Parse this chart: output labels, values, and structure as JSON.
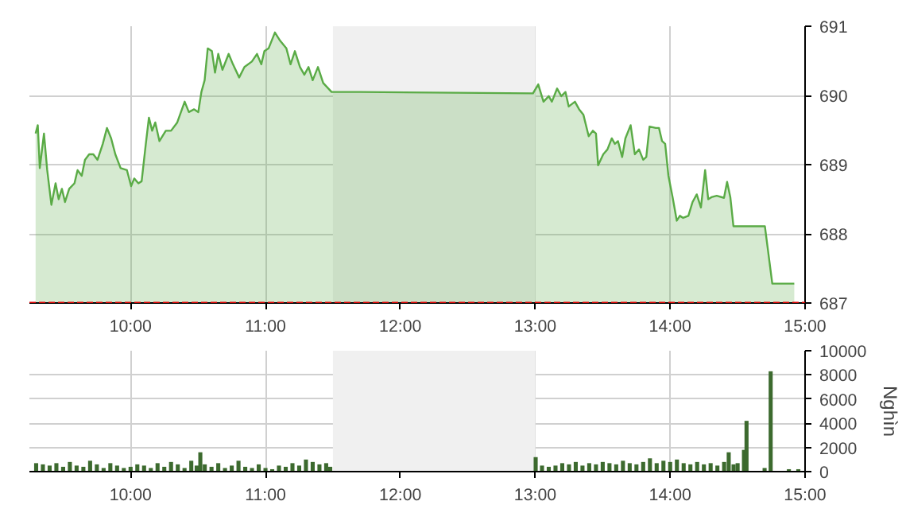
{
  "chart_data": [
    {
      "type": "area",
      "x": [
        9.296,
        9.312,
        9.327,
        9.358,
        9.382,
        9.413,
        9.444,
        9.467,
        9.491,
        9.514,
        9.545,
        9.584,
        9.607,
        9.638,
        9.662,
        9.693,
        9.724,
        9.755,
        9.794,
        9.825,
        9.856,
        9.887,
        9.926,
        9.973,
        10.004,
        10.027,
        10.058,
        10.082,
        10.113,
        10.136,
        10.16,
        10.183,
        10.214,
        10.261,
        10.3,
        10.346,
        10.401,
        10.432,
        10.471,
        10.502,
        10.525,
        10.549,
        10.572,
        10.603,
        10.626,
        10.65,
        10.681,
        10.727,
        10.759,
        10.805,
        10.844,
        10.899,
        10.937,
        10.969,
        10.992,
        11.023,
        11.07,
        11.109,
        11.155,
        11.186,
        11.218,
        11.256,
        11.288,
        11.319,
        11.35,
        11.389,
        11.428,
        11.49,
        11.7,
        12.983,
        13.022,
        13.061,
        13.1,
        13.123,
        13.162,
        13.193,
        13.224,
        13.248,
        13.294,
        13.325,
        13.357,
        13.396,
        13.427,
        13.45,
        13.466,
        13.504,
        13.535,
        13.567,
        13.59,
        13.613,
        13.644,
        13.668,
        13.707,
        13.738,
        13.769,
        13.8,
        13.823,
        13.847,
        13.893,
        13.917,
        13.94,
        13.963,
        13.987,
        14.018,
        14.049,
        14.072,
        14.096,
        14.135,
        14.166,
        14.197,
        14.228,
        14.259,
        14.282,
        14.306,
        14.345,
        14.399,
        14.422,
        14.446,
        14.469,
        14.702,
        14.757,
        14.92
      ],
      "series": [
        {
          "color": "#5aab46",
          "values": [
            689.45,
            689.57,
            688.95,
            689.45,
            688.92,
            688.42,
            688.73,
            688.5,
            688.65,
            688.46,
            688.65,
            688.73,
            688.92,
            688.84,
            689.07,
            689.15,
            689.15,
            689.07,
            689.3,
            689.53,
            689.38,
            689.15,
            688.95,
            688.92,
            688.69,
            688.8,
            688.73,
            688.76,
            689.3,
            689.68,
            689.49,
            689.61,
            689.34,
            689.49,
            689.49,
            689.61,
            689.91,
            689.76,
            689.8,
            689.76,
            690.05,
            690.22,
            690.68,
            690.64,
            690.33,
            690.6,
            690.37,
            690.6,
            690.45,
            690.26,
            690.41,
            690.49,
            690.6,
            690.45,
            690.64,
            690.68,
            690.91,
            690.79,
            690.68,
            690.45,
            690.64,
            690.41,
            690.3,
            690.41,
            690.22,
            690.41,
            690.18,
            690.05,
            690.05,
            690.03,
            690.16,
            689.91,
            689.99,
            689.91,
            690.1,
            689.99,
            690.05,
            689.84,
            689.91,
            689.8,
            689.72,
            689.41,
            689.49,
            689.45,
            688.99,
            689.15,
            689.22,
            689.38,
            689.3,
            689.34,
            689.11,
            689.38,
            689.57,
            689.15,
            689.22,
            689.07,
            689.11,
            689.55,
            689.53,
            689.53,
            689.34,
            689.3,
            688.84,
            688.53,
            688.19,
            688.26,
            688.23,
            688.26,
            688.46,
            688.57,
            688.38,
            688.92,
            688.5,
            688.53,
            688.55,
            688.52,
            688.75,
            688.53,
            688.11,
            688.11,
            687.28,
            687.28
          ]
        }
      ],
      "xlim": [
        9.25,
        15
      ],
      "ylim": [
        687,
        691
      ],
      "yticks": [
        687,
        688,
        689,
        690,
        691
      ],
      "xticks": [
        {
          "value": 10,
          "label": "10:00"
        },
        {
          "value": 11,
          "label": "11:00"
        },
        {
          "value": 12,
          "label": "12:00"
        },
        {
          "value": 13,
          "label": "13:00"
        },
        {
          "value": 14,
          "label": "14:00"
        },
        {
          "value": 15,
          "label": "15:00"
        }
      ],
      "grid": true,
      "bands": [
        {
          "axis": "x",
          "from": 11.5,
          "to": 13,
          "color": "#f0f0f0"
        }
      ],
      "ref_lines": [
        {
          "axis": "y",
          "value": 687,
          "color": "#dd0000",
          "line_style": "dashed"
        }
      ]
    },
    {
      "type": "bar",
      "ylabel": "Nghìn",
      "color": "#3c6a2e",
      "x": [
        9.3,
        9.35,
        9.4,
        9.45,
        9.5,
        9.55,
        9.6,
        9.65,
        9.7,
        9.75,
        9.8,
        9.85,
        9.9,
        9.95,
        10.0,
        10.05,
        10.1,
        10.15,
        10.2,
        10.25,
        10.3,
        10.35,
        10.4,
        10.45,
        10.49,
        10.517,
        10.55,
        10.6,
        10.65,
        10.7,
        10.75,
        10.8,
        10.85,
        10.9,
        10.95,
        11.0,
        11.05,
        11.1,
        11.15,
        11.2,
        11.25,
        11.3,
        11.35,
        11.4,
        11.45,
        11.48,
        13.003,
        13.05,
        13.1,
        13.15,
        13.2,
        13.25,
        13.3,
        13.35,
        13.4,
        13.45,
        13.5,
        13.55,
        13.6,
        13.65,
        13.7,
        13.75,
        13.8,
        13.85,
        13.9,
        13.95,
        14.0,
        14.05,
        14.1,
        14.15,
        14.2,
        14.25,
        14.3,
        14.35,
        14.4,
        14.434,
        14.47,
        14.5,
        14.547,
        14.566,
        14.7,
        14.745,
        14.88,
        14.95
      ],
      "values": [
        700,
        600,
        500,
        700,
        400,
        800,
        500,
        400,
        900,
        600,
        300,
        700,
        500,
        300,
        400,
        600,
        500,
        300,
        700,
        400,
        800,
        600,
        300,
        900,
        500,
        1600,
        600,
        400,
        700,
        300,
        500,
        900,
        400,
        300,
        600,
        300,
        200,
        500,
        400,
        700,
        500,
        1000,
        800,
        600,
        700,
        400,
        1200,
        500,
        400,
        500,
        700,
        600,
        800,
        500,
        700,
        600,
        800,
        700,
        600,
        900,
        700,
        600,
        800,
        1100,
        700,
        900,
        800,
        1000,
        700,
        600,
        800,
        600,
        700,
        500,
        800,
        1600,
        600,
        700,
        1800,
        4200,
        300,
        8300,
        200,
        200
      ],
      "xlim": [
        9.25,
        15
      ],
      "ylim": [
        0,
        10000
      ],
      "yticks": [
        0,
        2000,
        4000,
        6000,
        8000,
        10000
      ],
      "xticks": [
        {
          "value": 10,
          "label": "10:00"
        },
        {
          "value": 11,
          "label": "11:00"
        },
        {
          "value": 12,
          "label": "12:00"
        },
        {
          "value": 13,
          "label": "13:00"
        },
        {
          "value": 14,
          "label": "14:00"
        },
        {
          "value": 15,
          "label": "15:00"
        }
      ],
      "grid": true,
      "bands": [
        {
          "axis": "x",
          "from": 11.5,
          "to": 13,
          "color": "#f0f0f0"
        }
      ]
    }
  ]
}
